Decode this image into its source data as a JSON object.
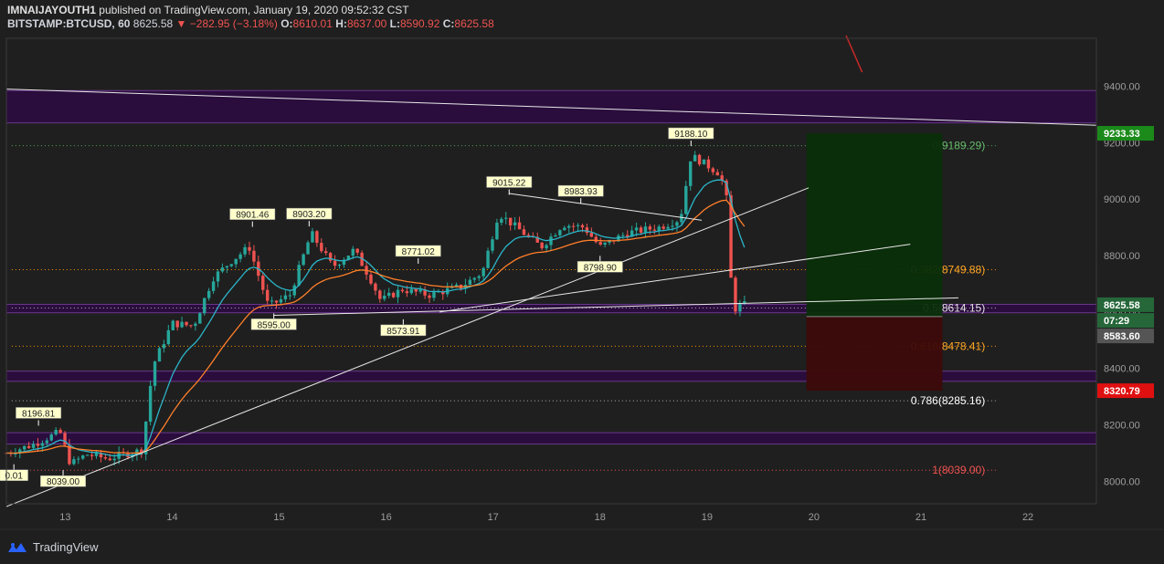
{
  "header": {
    "author": "IMNAIJAYOUTH1",
    "published": "published on TradingView.com, January 19, 2020 09:52:32 CST",
    "symbol": "BITSTAMP:BTCUSD, 60",
    "last": "8625.58",
    "change_arrow": "▼",
    "change": "−282.95 (−3.18%)",
    "o_label": "O:",
    "o": "8610.01",
    "h_label": "H:",
    "h": "8637.00",
    "l_label": "L:",
    "l": "8590.92",
    "c_label": "C:",
    "c": "8625.58"
  },
  "footer": {
    "logo_icon": "tradingview-logo-icon",
    "brand": "TradingView"
  },
  "colors": {
    "background": "#1f1f1f",
    "up": "#26a69a",
    "down": "#ef5350",
    "ema_fast": "#2bb5c8",
    "ema_slow": "#ff7f2a",
    "zone": "#2a0d3d",
    "target_zone": "#0a2e0a",
    "stop_zone": "#3d0a0a"
  },
  "chart_data": {
    "type": "candlestick",
    "x_ticks": [
      "13",
      "14",
      "15",
      "16",
      "17",
      "18",
      "19",
      "20",
      "21",
      "22"
    ],
    "y_ticks": [
      "8000.00",
      "8200.00",
      "8400.00",
      "8600.00",
      "8800.00",
      "9000.00",
      "9200.00",
      "9400.00"
    ],
    "y_tick_values": [
      8000,
      8200,
      8400,
      8600,
      8800,
      9000,
      9200,
      9400
    ],
    "ylim": [
      7920,
      9570
    ],
    "xlim": [
      12.45,
      22.64
    ],
    "key_points": [
      {
        "day": 12.45,
        "price": 8100
      },
      {
        "day": 12.7,
        "price": 8130
      },
      {
        "day": 12.95,
        "price": 8175
      },
      {
        "day": 13.05,
        "price": 8060
      },
      {
        "day": 13.2,
        "price": 8095
      },
      {
        "day": 13.4,
        "price": 8080
      },
      {
        "day": 13.6,
        "price": 8100
      },
      {
        "day": 13.72,
        "price": 8110
      },
      {
        "day": 13.82,
        "price": 8410
      },
      {
        "day": 14.0,
        "price": 8560
      },
      {
        "day": 14.2,
        "price": 8550
      },
      {
        "day": 14.38,
        "price": 8720
      },
      {
        "day": 14.55,
        "price": 8780
      },
      {
        "day": 14.72,
        "price": 8830
      },
      {
        "day": 14.9,
        "price": 8620
      },
      {
        "day": 15.1,
        "price": 8660
      },
      {
        "day": 15.3,
        "price": 8880
      },
      {
        "day": 15.5,
        "price": 8760
      },
      {
        "day": 15.7,
        "price": 8820
      },
      {
        "day": 15.85,
        "price": 8720
      },
      {
        "day": 15.95,
        "price": 8640
      },
      {
        "day": 16.15,
        "price": 8680
      },
      {
        "day": 16.4,
        "price": 8660
      },
      {
        "day": 16.7,
        "price": 8690
      },
      {
        "day": 16.9,
        "price": 8740
      },
      {
        "day": 17.05,
        "price": 8950
      },
      {
        "day": 17.25,
        "price": 8890
      },
      {
        "day": 17.45,
        "price": 8830
      },
      {
        "day": 17.65,
        "price": 8910
      },
      {
        "day": 17.85,
        "price": 8900
      },
      {
        "day": 18.0,
        "price": 8830
      },
      {
        "day": 18.25,
        "price": 8880
      },
      {
        "day": 18.55,
        "price": 8900
      },
      {
        "day": 18.75,
        "price": 8930
      },
      {
        "day": 18.85,
        "price": 9155
      },
      {
        "day": 19.0,
        "price": 9120
      },
      {
        "day": 19.12,
        "price": 9090
      },
      {
        "day": 19.18,
        "price": 9010
      },
      {
        "day": 19.21,
        "price": 8850
      },
      {
        "day": 19.24,
        "price": 8560
      },
      {
        "day": 19.27,
        "price": 8620
      },
      {
        "day": 19.35,
        "price": 8625
      }
    ],
    "price_labels": [
      {
        "text": "8196.81",
        "day": 12.75,
        "price": 8196.81,
        "pos": "above"
      },
      {
        "text": "8039.00",
        "day": 12.98,
        "price": 8039,
        "pos": "below"
      },
      {
        "text": "0.01",
        "day": 12.52,
        "price": 8060,
        "pos": "below"
      },
      {
        "text": "8901.46",
        "day": 14.75,
        "price": 8901.46,
        "pos": "above"
      },
      {
        "text": "8595.00",
        "day": 14.95,
        "price": 8595,
        "pos": "below"
      },
      {
        "text": "8903.20",
        "day": 15.28,
        "price": 8903.2,
        "pos": "above"
      },
      {
        "text": "8573.91",
        "day": 16.16,
        "price": 8573.91,
        "pos": "below"
      },
      {
        "text": "8771.02",
        "day": 16.3,
        "price": 8771.02,
        "pos": "above"
      },
      {
        "text": "9015.22",
        "day": 17.15,
        "price": 9015.22,
        "pos": "above"
      },
      {
        "text": "8983.93",
        "day": 17.82,
        "price": 8983.93,
        "pos": "above"
      },
      {
        "text": "8798.90",
        "day": 18.0,
        "price": 8798.9,
        "pos": "below"
      },
      {
        "text": "9188.10",
        "day": 18.85,
        "price": 9188.1,
        "pos": "above"
      }
    ],
    "fib_levels": [
      {
        "label": "0(9189.29)",
        "price": 9189.29,
        "color": "#4caf50",
        "label_color": "#66bb6a"
      },
      {
        "label": "0.382(8749.88)",
        "price": 8749.88,
        "color": "#ff9800",
        "label_color": "#ffa726"
      },
      {
        "label": "0.5(8614.15)",
        "price": 8614.15,
        "color": "#b0b0b0",
        "label_color": "#e0e0e0"
      },
      {
        "label": "0.618(8478.41)",
        "price": 8478.41,
        "color": "#ff9800",
        "label_color": "#ffa726"
      },
      {
        "label": "0.786(8285.16)",
        "price": 8285.16,
        "color": "#b0b0b0",
        "label_color": "#ffffff"
      },
      {
        "label": "1(8039.00)",
        "price": 8039,
        "color": "#ef5350",
        "label_color": "#ef5350"
      }
    ],
    "zones": [
      {
        "price_top": 9385,
        "price_bottom": 9270
      },
      {
        "price_top": 8627,
        "price_bottom": 8597
      },
      {
        "price_top": 8390,
        "price_bottom": 8354
      },
      {
        "price_top": 8172,
        "price_bottom": 8132
      }
    ],
    "trendlines": [
      {
        "x1": 12.45,
        "y1": 9390,
        "x2": 22.64,
        "y2": 9262
      },
      {
        "x1": 12.45,
        "y1": 7910,
        "x2": 19.95,
        "y2": 9040
      },
      {
        "x1": 14.95,
        "y1": 8588,
        "x2": 21.35,
        "y2": 8650
      },
      {
        "x1": 16.5,
        "y1": 8600,
        "x2": 20.9,
        "y2": 8840
      },
      {
        "x1": 17.15,
        "y1": 9020,
        "x2": 18.95,
        "y2": 8925
      },
      {
        "x1": 19.0,
        "y1": 8590,
        "x2": 19.0,
        "y2": 8590
      }
    ],
    "red_line": {
      "x1": 20.3,
      "y1": 9580,
      "x2": 20.45,
      "y2": 9450
    },
    "position": {
      "x_start": 19.93,
      "x_end": 21.2,
      "target": 9233.33,
      "entry": 8583.6,
      "stop": 8320.79
    },
    "price_tags": [
      {
        "text": "9233.33",
        "price": 9233.33,
        "bg": "#1b8a1b"
      },
      {
        "text": "8625.58",
        "price": 8625.58,
        "bg": "#26673a"
      },
      {
        "text": "07:29",
        "price": 8570,
        "bg": "#26673a"
      },
      {
        "text": "8583.60",
        "price": 8515,
        "bg": "#555555"
      },
      {
        "text": "8320.79",
        "price": 8320.79,
        "bg": "#e01010"
      }
    ]
  }
}
